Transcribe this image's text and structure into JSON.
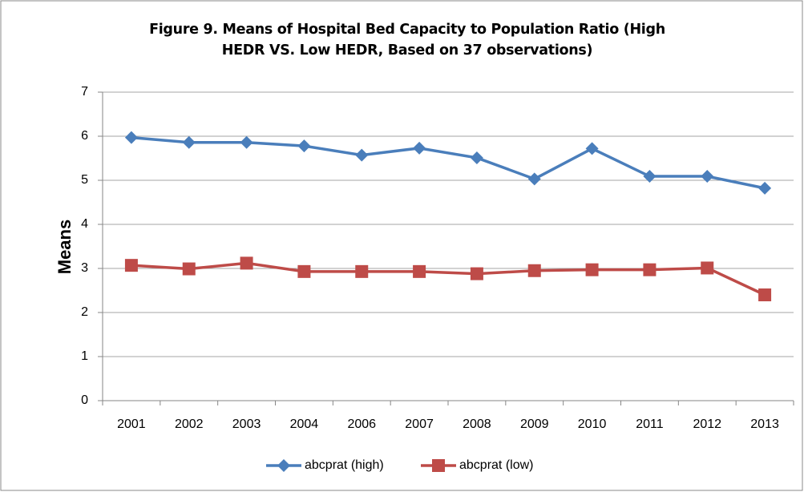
{
  "chart_data": {
    "type": "line",
    "title": "Figure 9. Means of Hospital Bed Capacity to Population Ratio (High HEDR VS. Low HEDR, Based on 37 observations)",
    "y_label": "Means",
    "categories": [
      "2001",
      "2002",
      "2003",
      "2004",
      "2006",
      "2007",
      "2008",
      "2009",
      "2010",
      "2011",
      "2012",
      "2013"
    ],
    "series": [
      {
        "name": "abcprat (high)",
        "color": "#4a7ebb",
        "marker": "diamond",
        "values": [
          5.97,
          5.86,
          5.86,
          5.78,
          5.57,
          5.73,
          5.51,
          5.03,
          5.72,
          5.09,
          5.09,
          4.82
        ]
      },
      {
        "name": "abcprat (low)",
        "color": "#be4b48",
        "marker": "square",
        "values": [
          3.07,
          2.99,
          3.12,
          2.93,
          2.93,
          2.93,
          2.88,
          2.95,
          2.97,
          2.97,
          3.01,
          2.4
        ]
      }
    ],
    "ylim": [
      0,
      7
    ],
    "yticks": [
      0,
      1,
      2,
      3,
      4,
      5,
      6,
      7
    ],
    "grid": true,
    "legend": "bottom"
  }
}
